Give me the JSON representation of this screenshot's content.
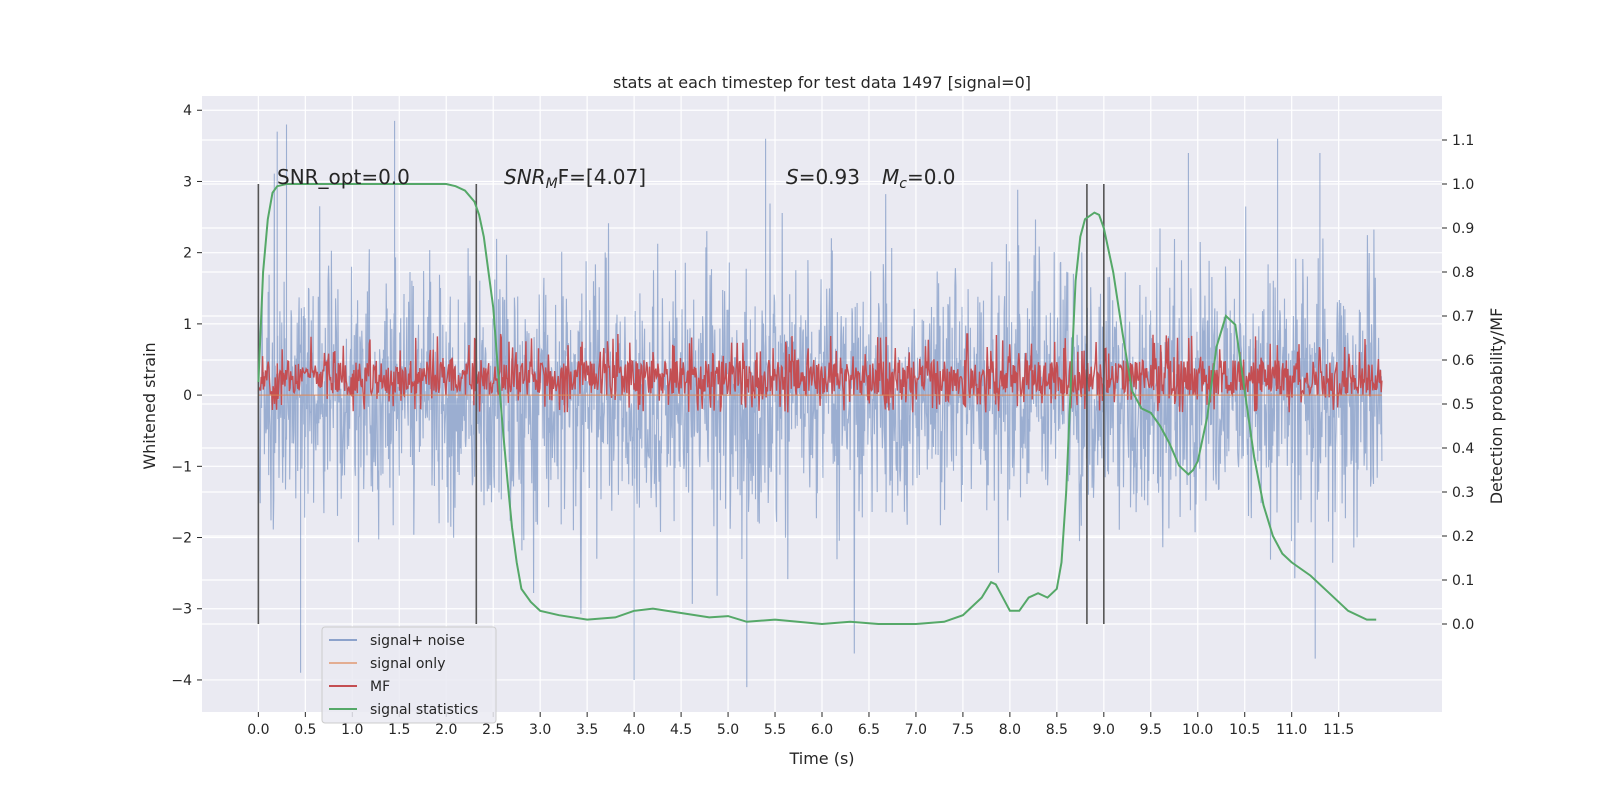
{
  "chart_data": {
    "type": "line",
    "title": "stats at each timestep for test data 1497 [signal=0]",
    "xlabel": "Time (s)",
    "ylabel": "Whitened strain",
    "ylabel_right": "Detection probability/MF",
    "xlim": [
      -0.6,
      12.6
    ],
    "ylim": [
      -4.45,
      4.2
    ],
    "ylim_right": [
      -0.2,
      1.2
    ],
    "xticks": [
      0.0,
      0.5,
      1.0,
      1.5,
      2.0,
      2.5,
      3.0,
      3.5,
      4.0,
      4.5,
      5.0,
      5.5,
      6.0,
      6.5,
      7.0,
      7.5,
      8.0,
      8.5,
      9.0,
      9.5,
      10.0,
      10.5,
      11.0,
      11.5
    ],
    "xtick_labels": [
      "0.0",
      "0.5",
      "1.0",
      "1.5",
      "2.0",
      "2.5",
      "3.0",
      "3.5",
      "4.0",
      "4.5",
      "5.0",
      "5.5",
      "6.0",
      "6.5",
      "7.0",
      "7.5",
      "8.0",
      "8.5",
      "9.0",
      "9.5",
      "10.0",
      "10.5",
      "11.0",
      "11.5"
    ],
    "yticks": [
      -4,
      -3,
      -2,
      -1,
      0,
      1,
      2,
      3,
      4
    ],
    "ytick_labels": [
      "−4",
      "−3",
      "−2",
      "−1",
      "0",
      "1",
      "2",
      "3",
      "4"
    ],
    "yticks_right": [
      0.0,
      0.1,
      0.2,
      0.3,
      0.4,
      0.5,
      0.6,
      0.7,
      0.8,
      0.9,
      1.0,
      1.1
    ],
    "ytick_labels_right": [
      "0.0",
      "0.1",
      "0.2",
      "0.3",
      "0.4",
      "0.5",
      "0.6",
      "0.7",
      "0.8",
      "0.9",
      "1.0",
      "1.1"
    ],
    "grid": true,
    "legend_position": "lower-left",
    "annotations": {
      "snr_opt": "SNR_opt=0.0",
      "snr_mf_base": "SNR",
      "snr_mf_sub": "M",
      "snr_mf_rest": "F=[4.07]",
      "s_var": "S",
      "s_value": "=0.93",
      "mc_var": "M",
      "mc_sub": "c",
      "mc_value": "=0.0"
    },
    "vertical_lines_x": [
      0.0,
      2.32,
      8.82,
      9.0
    ],
    "series": [
      {
        "name": "signal+ noise",
        "color": "#4c72b0",
        "axis": "left",
        "noise": {
          "x_start": 0.0,
          "x_end": 11.96,
          "sigma": 1.0,
          "clip": 3.9,
          "peak_samples": [
            [
              0.2,
              3.7
            ],
            [
              0.3,
              3.8
            ],
            [
              1.45,
              3.85
            ],
            [
              5.4,
              3.6
            ],
            [
              9.9,
              3.4
            ],
            [
              10.85,
              3.6
            ],
            [
              11.3,
              3.4
            ],
            [
              0.45,
              -3.9
            ],
            [
              4.0,
              -4.0
            ],
            [
              5.2,
              -4.1
            ],
            [
              11.25,
              -3.7
            ]
          ]
        }
      },
      {
        "name": "signal only",
        "color": "#dd8452",
        "axis": "left",
        "x": [
          0.0,
          11.96
        ],
        "y": [
          0.0,
          0.0
        ]
      },
      {
        "name": "MF",
        "color": "#c44e52",
        "axis": "right",
        "band": {
          "x_start": 0.0,
          "x_end": 11.96,
          "low": 0.52,
          "high": 0.6,
          "peak": 0.66
        }
      },
      {
        "name": "signal statistics",
        "color": "#55a868",
        "axis": "right",
        "x": [
          0.0,
          0.05,
          0.1,
          0.15,
          0.2,
          0.3,
          0.5,
          1.0,
          1.5,
          2.0,
          2.1,
          2.2,
          2.3,
          2.35,
          2.4,
          2.5,
          2.55,
          2.6,
          2.65,
          2.7,
          2.75,
          2.8,
          2.9,
          3.0,
          3.2,
          3.5,
          3.8,
          4.0,
          4.2,
          4.5,
          4.8,
          5.0,
          5.2,
          5.5,
          6.0,
          6.3,
          6.6,
          7.0,
          7.3,
          7.5,
          7.7,
          7.8,
          7.85,
          7.9,
          8.0,
          8.1,
          8.2,
          8.3,
          8.4,
          8.5,
          8.55,
          8.6,
          8.65,
          8.7,
          8.75,
          8.8,
          8.9,
          8.95,
          9.0,
          9.1,
          9.2,
          9.3,
          9.4,
          9.5,
          9.6,
          9.7,
          9.8,
          9.9,
          9.95,
          10.0,
          10.1,
          10.15,
          10.2,
          10.3,
          10.4,
          10.5,
          10.6,
          10.7,
          10.8,
          10.9,
          11.0,
          11.2,
          11.4,
          11.6,
          11.8,
          11.9
        ],
        "y": [
          0.55,
          0.8,
          0.92,
          0.98,
          0.995,
          1.0,
          1.0,
          1.0,
          1.0,
          1.0,
          0.995,
          0.985,
          0.96,
          0.93,
          0.88,
          0.72,
          0.58,
          0.45,
          0.33,
          0.22,
          0.14,
          0.08,
          0.05,
          0.03,
          0.02,
          0.01,
          0.015,
          0.03,
          0.035,
          0.025,
          0.015,
          0.018,
          0.005,
          0.01,
          0.0,
          0.005,
          0.0,
          0.0,
          0.005,
          0.02,
          0.06,
          0.095,
          0.09,
          0.07,
          0.03,
          0.03,
          0.06,
          0.07,
          0.06,
          0.08,
          0.14,
          0.3,
          0.55,
          0.78,
          0.88,
          0.92,
          0.935,
          0.93,
          0.9,
          0.8,
          0.66,
          0.53,
          0.49,
          0.48,
          0.45,
          0.41,
          0.36,
          0.34,
          0.35,
          0.37,
          0.47,
          0.55,
          0.63,
          0.7,
          0.68,
          0.53,
          0.38,
          0.27,
          0.2,
          0.16,
          0.14,
          0.11,
          0.07,
          0.03,
          0.01,
          0.01
        ]
      }
    ]
  }
}
